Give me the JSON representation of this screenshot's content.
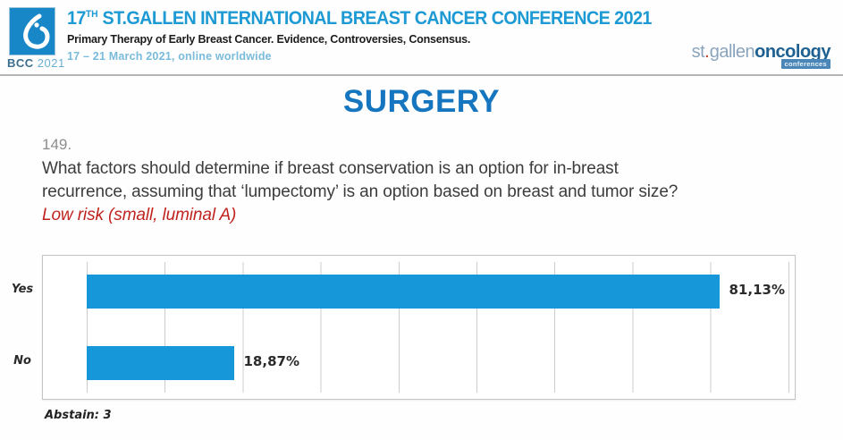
{
  "header": {
    "logo": {
      "name": "BCC 2021 conference logo",
      "bcc": "BCC",
      "year": "2021",
      "square_color": "#1787c8"
    },
    "title_num": "17",
    "title_sup": "TH",
    "title_rest": " ST.GALLEN INTERNATIONAL BREAST CANCER CONFERENCE 2021",
    "subtitle": "Primary Therapy of Early Breast Cancer. Evidence, Controversies, Consensus.",
    "dates": "17 – 21 March 2021, online worldwide",
    "right_logo": {
      "part_light": "st",
      "dot": ".",
      "part_light2": "gallen",
      "part_bold": "oncology",
      "badge": "conferences"
    }
  },
  "section_title": "SURGERY",
  "question": {
    "number": "149.",
    "line1": "What factors should determine if breast conservation is an option for in-breast",
    "line2": "recurrence, assuming that ‘lumpectomy’ is an option based on breast and tumor size?",
    "highlight": "Low risk (small, luminal A)"
  },
  "chart_data": {
    "type": "bar",
    "orientation": "horizontal",
    "title": "",
    "categories": [
      "Yes",
      "No"
    ],
    "values": [
      81.13,
      18.87
    ],
    "value_labels": [
      "81,13%",
      "18,87%"
    ],
    "xlim": [
      0,
      100
    ],
    "gridline_interval_pct": 10,
    "grid": true,
    "bar_color": "#1697da",
    "footnote": "Abstain: 3"
  },
  "colors": {
    "header_title_blue": "#1d9ad3",
    "dates_blue": "#79bbdb",
    "section_title_blue": "#1576bf",
    "highlight_red": "#c0231f",
    "question_gray": "#8d8d8d",
    "bar_blue": "#1697da"
  }
}
